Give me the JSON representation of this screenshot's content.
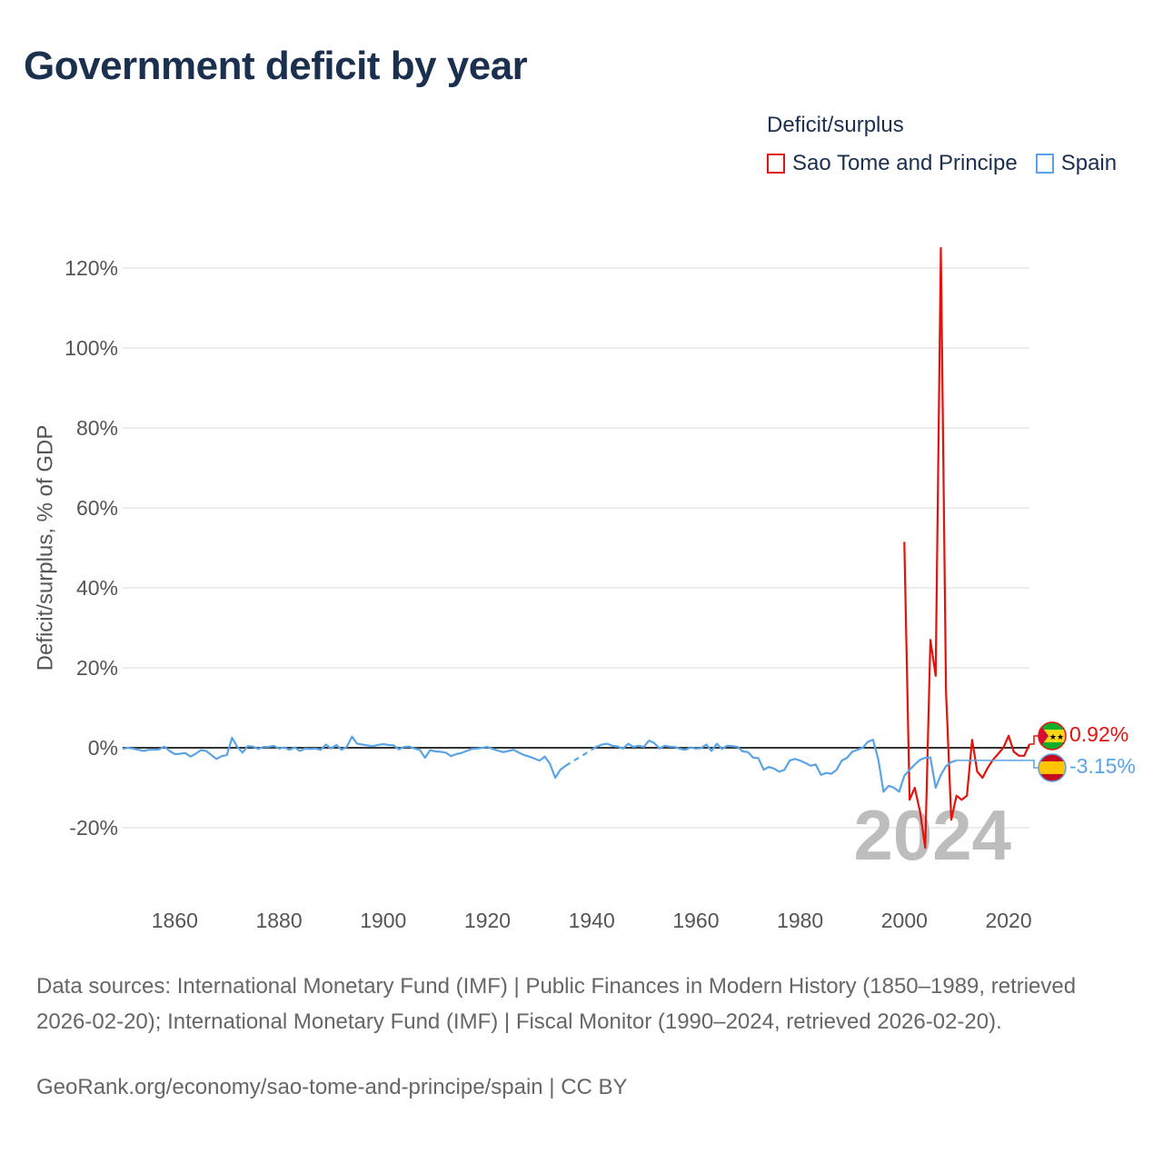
{
  "header": {
    "title": "Government deficit by year"
  },
  "legend": {
    "title": "Deficit/surplus",
    "items": [
      {
        "name": "Sao Tome and Principe",
        "color": "#e3120b"
      },
      {
        "name": "Spain",
        "color": "#5aa3e6"
      }
    ]
  },
  "footer": {
    "sources": "Data sources: International Monetary Fund (IMF) | Public Finances in Modern History (1850–1989, retrieved 2026-02-20); International Monetary Fund (IMF) | Fiscal Monitor (1990–2024, retrieved 2026-02-20).",
    "credit": "GeoRank.org/economy/sao-tome-and-principe/spain | CC BY"
  },
  "chart_data": {
    "type": "line",
    "title": "Government deficit by year",
    "xlabel": "",
    "ylabel": "Deficit/surplus, % of GDP",
    "xlim": [
      1850,
      2024
    ],
    "ylim": [
      -30,
      125
    ],
    "x_ticks": [
      1860,
      1880,
      1900,
      1920,
      1940,
      1960,
      1980,
      2000,
      2020
    ],
    "y_ticks": [
      120,
      100,
      80,
      60,
      40,
      20,
      0,
      -20
    ],
    "y_tick_labels": [
      "120%",
      "100%",
      "80%",
      "60%",
      "40%",
      "20%",
      "0%",
      "-20%"
    ],
    "grid": true,
    "current_year": "2024",
    "series": [
      {
        "name": "Sao Tome and Principe",
        "color": "#e3120b",
        "end_label": "0.92%",
        "points": [
          [
            2000,
            51.5
          ],
          [
            2001,
            -13
          ],
          [
            2002,
            -10
          ],
          [
            2003,
            -16
          ],
          [
            2004,
            -25
          ],
          [
            2005,
            27
          ],
          [
            2006,
            18
          ],
          [
            2007,
            125
          ],
          [
            2008,
            14
          ],
          [
            2009,
            -18
          ],
          [
            2010,
            -12
          ],
          [
            2011,
            -13
          ],
          [
            2012,
            -12
          ],
          [
            2013,
            2
          ],
          [
            2014,
            -6
          ],
          [
            2015,
            -7.5
          ],
          [
            2016,
            -5
          ],
          [
            2017,
            -3
          ],
          [
            2018,
            -1.5
          ],
          [
            2019,
            0
          ],
          [
            2020,
            3
          ],
          [
            2021,
            -1
          ],
          [
            2022,
            -2
          ],
          [
            2023,
            -2
          ],
          [
            2024,
            0.92
          ]
        ]
      },
      {
        "name": "Spain",
        "color": "#5aa3e6",
        "end_label": "-3.15%",
        "gap": [
          1935,
          1940
        ],
        "points": [
          [
            1850,
            -0.3
          ],
          [
            1851,
            0
          ],
          [
            1852,
            -0.2
          ],
          [
            1853,
            -0.5
          ],
          [
            1854,
            -0.8
          ],
          [
            1855,
            -0.5
          ],
          [
            1856,
            -0.5
          ],
          [
            1857,
            -0.4
          ],
          [
            1858,
            0.3
          ],
          [
            1859,
            -0.8
          ],
          [
            1860,
            -1.6
          ],
          [
            1861,
            -1.5
          ],
          [
            1862,
            -1.3
          ],
          [
            1863,
            -2.2
          ],
          [
            1864,
            -1.5
          ],
          [
            1865,
            -0.6
          ],
          [
            1866,
            -0.8
          ],
          [
            1867,
            -1.8
          ],
          [
            1868,
            -2.8
          ],
          [
            1869,
            -2.1
          ],
          [
            1870,
            -1.8
          ],
          [
            1871,
            2.5
          ],
          [
            1872,
            0.2
          ],
          [
            1873,
            -1.2
          ],
          [
            1874,
            0.4
          ],
          [
            1875,
            0.3
          ],
          [
            1876,
            -0.3
          ],
          [
            1877,
            0.2
          ],
          [
            1878,
            0.2
          ],
          [
            1879,
            0.5
          ],
          [
            1880,
            -0.2
          ],
          [
            1881,
            0.1
          ],
          [
            1882,
            -0.5
          ],
          [
            1883,
            0.1
          ],
          [
            1884,
            -0.8
          ],
          [
            1885,
            -0.2
          ],
          [
            1886,
            -0.3
          ],
          [
            1887,
            -0.2
          ],
          [
            1888,
            -0.5
          ],
          [
            1889,
            0.8
          ],
          [
            1890,
            -0.2
          ],
          [
            1891,
            0.7
          ],
          [
            1892,
            -0.5
          ],
          [
            1893,
            0.2
          ],
          [
            1894,
            2.8
          ],
          [
            1895,
            1
          ],
          [
            1896,
            0.8
          ],
          [
            1897,
            0.6
          ],
          [
            1898,
            0.4
          ],
          [
            1899,
            0.7
          ],
          [
            1900,
            0.9
          ],
          [
            1901,
            0.7
          ],
          [
            1902,
            0.6
          ],
          [
            1903,
            -0.4
          ],
          [
            1904,
            0.2
          ],
          [
            1905,
            0.3
          ],
          [
            1906,
            -0.2
          ],
          [
            1907,
            -0.5
          ],
          [
            1908,
            -2.5
          ],
          [
            1909,
            -0.6
          ],
          [
            1910,
            -0.9
          ],
          [
            1911,
            -1
          ],
          [
            1912,
            -1.2
          ],
          [
            1913,
            -2.1
          ],
          [
            1914,
            -1.6
          ],
          [
            1915,
            -1.3
          ],
          [
            1916,
            -0.8
          ],
          [
            1917,
            -0.3
          ],
          [
            1918,
            -0.2
          ],
          [
            1919,
            0
          ],
          [
            1920,
            0.2
          ],
          [
            1921,
            -0.3
          ],
          [
            1922,
            -0.7
          ],
          [
            1923,
            -1.1
          ],
          [
            1924,
            -0.8
          ],
          [
            1925,
            -0.5
          ],
          [
            1926,
            -1.2
          ],
          [
            1927,
            -1.8
          ],
          [
            1928,
            -2.2
          ],
          [
            1929,
            -2.7
          ],
          [
            1930,
            -3.2
          ],
          [
            1931,
            -2.2
          ],
          [
            1932,
            -4
          ],
          [
            1933,
            -7.5
          ],
          [
            1934,
            -5.5
          ],
          [
            1935,
            -4.5
          ],
          [
            1936,
            -2.5
          ],
          [
            1937,
            -1
          ],
          [
            1938,
            -1.2
          ],
          [
            1939,
            -0.3
          ],
          [
            1940,
            -0.5
          ],
          [
            1941,
            0.3
          ],
          [
            1942,
            0.8
          ],
          [
            1943,
            1
          ],
          [
            1944,
            0.5
          ],
          [
            1945,
            0.3
          ],
          [
            1946,
            -0.2
          ],
          [
            1947,
            1
          ],
          [
            1948,
            0.2
          ],
          [
            1949,
            0.5
          ],
          [
            1950,
            0.2
          ],
          [
            1951,
            1.8
          ],
          [
            1952,
            1.2
          ],
          [
            1953,
            -0.2
          ],
          [
            1954,
            0.5
          ],
          [
            1955,
            0.3
          ],
          [
            1956,
            0.2
          ],
          [
            1957,
            -0.3
          ],
          [
            1958,
            -0.5
          ],
          [
            1959,
            0.1
          ],
          [
            1960,
            -0.2
          ],
          [
            1961,
            -0.1
          ],
          [
            1962,
            0.8
          ],
          [
            1963,
            -0.8
          ],
          [
            1964,
            1
          ],
          [
            1965,
            -0.3
          ],
          [
            1966,
            0.5
          ],
          [
            1967,
            0.4
          ],
          [
            1968,
            0.2
          ],
          [
            1969,
            -0.9
          ],
          [
            1970,
            -1.1
          ],
          [
            1971,
            -2.5
          ],
          [
            1972,
            -2.6
          ],
          [
            1973,
            -5.5
          ],
          [
            1974,
            -4.8
          ],
          [
            1975,
            -5.2
          ],
          [
            1976,
            -6
          ],
          [
            1977,
            -5.5
          ],
          [
            1978,
            -3.2
          ],
          [
            1979,
            -2.8
          ],
          [
            1980,
            -3.2
          ],
          [
            1981,
            -3.8
          ],
          [
            1982,
            -4.5
          ],
          [
            1983,
            -4.2
          ],
          [
            1984,
            -6.8
          ],
          [
            1985,
            -6.3
          ],
          [
            1986,
            -6.5
          ],
          [
            1987,
            -5.5
          ],
          [
            1988,
            -3.2
          ],
          [
            1989,
            -2.5
          ],
          [
            1990,
            -1
          ],
          [
            1991,
            -0.5
          ],
          [
            1992,
            0
          ],
          [
            1993,
            1.5
          ],
          [
            1994,
            2
          ],
          [
            1995,
            -3
          ],
          [
            1996,
            -11
          ],
          [
            1997,
            -9.5
          ],
          [
            1998,
            -10
          ],
          [
            1999,
            -11
          ],
          [
            2000,
            -7
          ],
          [
            2001,
            -5.5
          ],
          [
            2002,
            -4.2
          ],
          [
            2003,
            -3
          ],
          [
            2004,
            -2.5
          ],
          [
            2005,
            -2.4
          ],
          [
            2006,
            -10
          ],
          [
            2007,
            -6.8
          ],
          [
            2008,
            -4.6
          ],
          [
            2009,
            -3.6
          ],
          [
            2010,
            -3.15
          ]
        ]
      }
    ]
  }
}
